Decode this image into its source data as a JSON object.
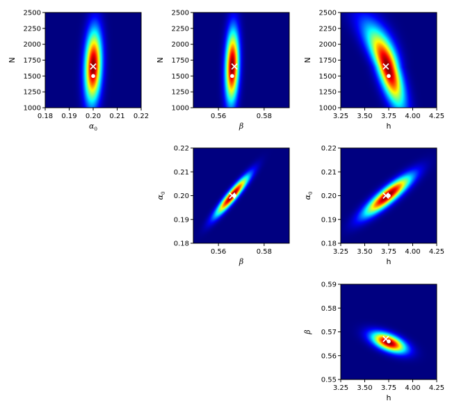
{
  "colors": {
    "colormap": "jet",
    "background": "#00007f",
    "x_marker": "#ffffff",
    "dot_marker": "#ffffff"
  },
  "chart_data": [
    {
      "type": "heatmap",
      "panel": "row1-col1",
      "xlabel": "α0",
      "ylabel": "N",
      "xlim": [
        0.18,
        0.22
      ],
      "ylim": [
        1000,
        2500
      ],
      "xticks": [
        "0.18",
        "0.19",
        "0.20",
        "0.21",
        "0.22"
      ],
      "yticks": [
        "1000",
        "1250",
        "1500",
        "1750",
        "2000",
        "2250",
        "2500"
      ],
      "density": {
        "cx": 0.2,
        "cy": 1650,
        "sx": 0.0032,
        "sy": 520,
        "rho": 0.15,
        "skew": 0.0,
        "tail": 0.0
      },
      "markers": [
        {
          "type": "x",
          "x": 0.2,
          "y": 1650
        },
        {
          "type": "dot",
          "x": 0.2,
          "y": 1500
        }
      ],
      "grid": false
    },
    {
      "type": "heatmap",
      "panel": "row1-col2",
      "xlabel": "β",
      "ylabel": "N",
      "xlim": [
        0.549,
        0.591
      ],
      "ylim": [
        1000,
        2500
      ],
      "xticks": [
        "0.56",
        "0.58"
      ],
      "xtick_values": [
        0.56,
        0.58
      ],
      "yticks": [
        "1000",
        "1250",
        "1500",
        "1750",
        "2000",
        "2250",
        "2500"
      ],
      "density": {
        "cx": 0.566,
        "cy": 1650,
        "sx": 0.0027,
        "sy": 520,
        "rho": 0.15,
        "skew": 0.0,
        "tail": 0.0
      },
      "markers": [
        {
          "type": "x",
          "x": 0.567,
          "y": 1650
        },
        {
          "type": "dot",
          "x": 0.566,
          "y": 1500
        }
      ],
      "grid": false
    },
    {
      "type": "heatmap",
      "panel": "row1-col3",
      "xlabel": "h",
      "ylabel": "N",
      "xlim": [
        3.25,
        4.25
      ],
      "ylim": [
        1000,
        2500
      ],
      "xticks": [
        "3.25",
        "3.50",
        "3.75",
        "4.00",
        "4.25"
      ],
      "yticks": [
        "1000",
        "1250",
        "1500",
        "1750",
        "2000",
        "2250",
        "2500"
      ],
      "density": {
        "cx": 3.74,
        "cy": 1640,
        "sx": 0.15,
        "sy": 560,
        "rho": -0.72,
        "skew": 0.0,
        "tail": 0.35
      },
      "markers": [
        {
          "type": "x",
          "x": 3.72,
          "y": 1650
        },
        {
          "type": "dot",
          "x": 3.75,
          "y": 1500
        }
      ],
      "grid": false
    },
    {
      "type": "heatmap",
      "panel": "row2-col2",
      "xlabel": "β",
      "ylabel": "α0",
      "xlim": [
        0.549,
        0.591
      ],
      "ylim": [
        0.18,
        0.22
      ],
      "xticks": [
        "0.56",
        "0.58"
      ],
      "xtick_values": [
        0.56,
        0.58
      ],
      "yticks": [
        "0.18",
        "0.19",
        "0.20",
        "0.21",
        "0.22"
      ],
      "density": {
        "cx": 0.566,
        "cy": 0.2,
        "sx": 0.0065,
        "sy": 0.0075,
        "rho": 0.93,
        "skew": 0.0,
        "tail": 0.0
      },
      "markers": [
        {
          "type": "x",
          "x": 0.566,
          "y": 0.2
        },
        {
          "type": "dot",
          "x": 0.567,
          "y": 0.2
        }
      ],
      "grid": false
    },
    {
      "type": "heatmap",
      "panel": "row2-col3",
      "xlabel": "h",
      "ylabel": "α0",
      "xlim": [
        3.25,
        4.25
      ],
      "ylim": [
        0.18,
        0.22
      ],
      "xticks": [
        "3.25",
        "3.50",
        "3.75",
        "4.00",
        "4.25"
      ],
      "yticks": [
        "0.18",
        "0.19",
        "0.20",
        "0.21",
        "0.22"
      ],
      "density": {
        "cx": 3.74,
        "cy": 0.2,
        "sx": 0.22,
        "sy": 0.0075,
        "rho": 0.88,
        "skew": 0.0,
        "tail": 0.0
      },
      "markers": [
        {
          "type": "x",
          "x": 3.72,
          "y": 0.2
        },
        {
          "type": "dot",
          "x": 3.75,
          "y": 0.2
        }
      ],
      "grid": false
    },
    {
      "type": "heatmap",
      "panel": "row3-col3",
      "xlabel": "h",
      "ylabel": "β",
      "xlim": [
        3.25,
        4.25
      ],
      "ylim": [
        0.55,
        0.59
      ],
      "xticks": [
        "3.25",
        "3.50",
        "3.75",
        "4.00",
        "4.25"
      ],
      "yticks": [
        "0.55",
        "0.56",
        "0.57",
        "0.58",
        "0.59"
      ],
      "density": {
        "cx": 3.75,
        "cy": 0.5655,
        "sx": 0.16,
        "sy": 0.0038,
        "rho": -0.55,
        "skew": 0.0,
        "tail": 0.0
      },
      "markers": [
        {
          "type": "x",
          "x": 3.72,
          "y": 0.567
        },
        {
          "type": "dot",
          "x": 3.75,
          "y": 0.566
        }
      ],
      "grid": false
    }
  ]
}
